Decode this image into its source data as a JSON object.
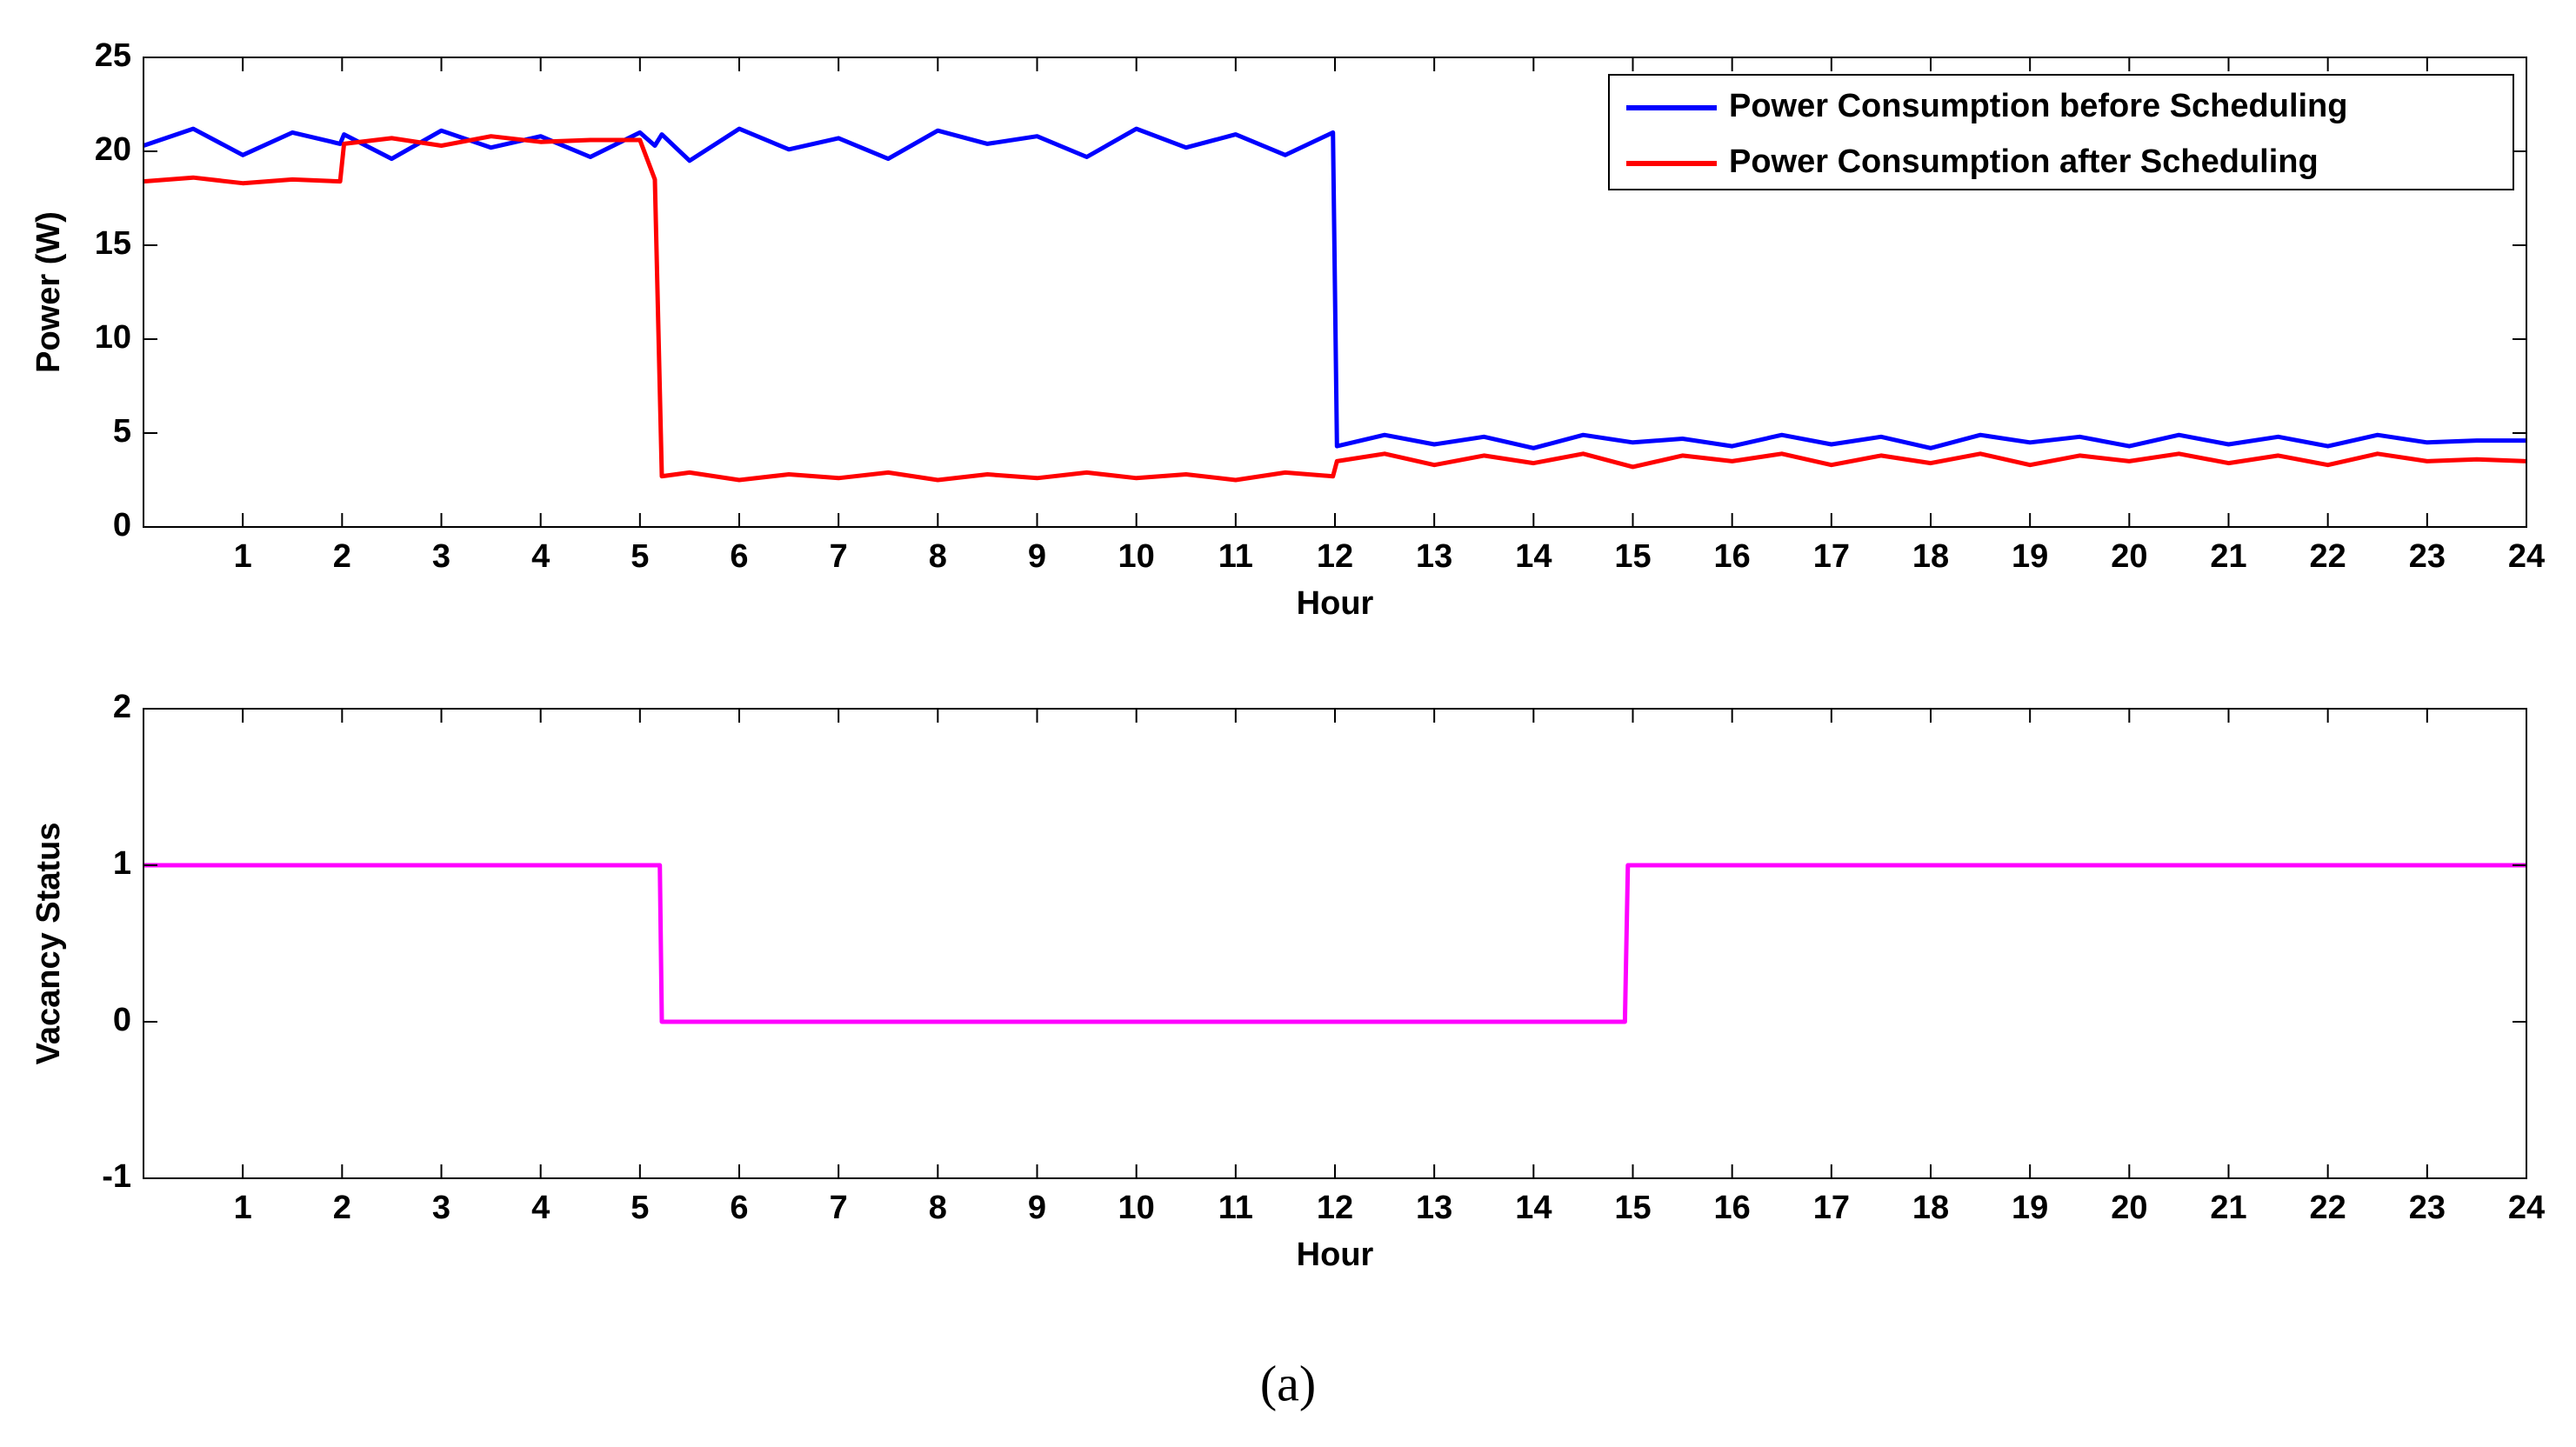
{
  "chart_data": [
    {
      "type": "line",
      "ylabel": "Power (W)",
      "xlabel": "Hour",
      "xlim": [
        0,
        24
      ],
      "xticks": [
        1,
        2,
        3,
        4,
        5,
        6,
        7,
        8,
        9,
        10,
        11,
        12,
        13,
        14,
        15,
        16,
        17,
        18,
        19,
        20,
        21,
        22,
        23,
        24
      ],
      "ylim": [
        0,
        25
      ],
      "yticks": [
        0,
        5,
        10,
        15,
        20,
        25
      ],
      "legend": "upper right",
      "x": [
        0,
        0.5,
        1,
        1.5,
        1.98,
        2.02,
        2.5,
        3,
        3.5,
        4,
        4.5,
        5,
        5.15,
        5.22,
        5.5,
        6,
        6.5,
        7,
        7.5,
        8,
        8.5,
        9,
        9.5,
        10,
        10.5,
        11,
        11.5,
        11.98,
        12.02,
        12.5,
        13,
        13.5,
        14,
        14.5,
        15,
        15.5,
        16,
        16.5,
        17,
        17.5,
        18,
        18.5,
        19,
        19.5,
        20,
        20.5,
        21,
        21.5,
        22,
        22.5,
        23,
        23.5,
        24
      ],
      "series": [
        {
          "name": "Power Consumption before Scheduling",
          "color": "#0000ff",
          "values": [
            20.3,
            21.2,
            19.8,
            21.0,
            20.4,
            20.9,
            19.6,
            21.1,
            20.2,
            20.8,
            19.7,
            21.0,
            20.3,
            20.9,
            19.5,
            21.2,
            20.1,
            20.7,
            19.6,
            21.1,
            20.4,
            20.8,
            19.7,
            21.2,
            20.2,
            20.9,
            19.8,
            21.0,
            4.3,
            4.9,
            4.4,
            4.8,
            4.2,
            4.9,
            4.5,
            4.7,
            4.3,
            4.9,
            4.4,
            4.8,
            4.2,
            4.9,
            4.5,
            4.8,
            4.3,
            4.9,
            4.4,
            4.8,
            4.3,
            4.9,
            4.5,
            4.6,
            4.6
          ]
        },
        {
          "name": "Power Consumption after Scheduling",
          "color": "#ff0000",
          "values": [
            18.4,
            18.6,
            18.3,
            18.5,
            18.4,
            20.4,
            20.7,
            20.3,
            20.8,
            20.5,
            20.6,
            20.6,
            18.5,
            2.7,
            2.9,
            2.5,
            2.8,
            2.6,
            2.9,
            2.5,
            2.8,
            2.6,
            2.9,
            2.6,
            2.8,
            2.5,
            2.9,
            2.7,
            3.5,
            3.9,
            3.3,
            3.8,
            3.4,
            3.9,
            3.2,
            3.8,
            3.5,
            3.9,
            3.3,
            3.8,
            3.4,
            3.9,
            3.3,
            3.8,
            3.5,
            3.9,
            3.4,
            3.8,
            3.3,
            3.9,
            3.5,
            3.6,
            3.5
          ]
        }
      ]
    },
    {
      "type": "line",
      "ylabel": "Vacancy Status",
      "xlabel": "Hour",
      "xlim": [
        0,
        24
      ],
      "xticks": [
        1,
        2,
        3,
        4,
        5,
        6,
        7,
        8,
        9,
        10,
        11,
        12,
        13,
        14,
        15,
        16,
        17,
        18,
        19,
        20,
        21,
        22,
        23,
        24
      ],
      "ylim": [
        -1,
        2
      ],
      "yticks": [
        -1,
        0,
        1,
        2
      ],
      "x": [
        0,
        5.2,
        5.22,
        14.92,
        14.95,
        24
      ],
      "values": [
        1,
        1,
        0,
        0,
        1,
        1
      ],
      "color": "#ff00ff"
    }
  ],
  "caption": "(a)"
}
